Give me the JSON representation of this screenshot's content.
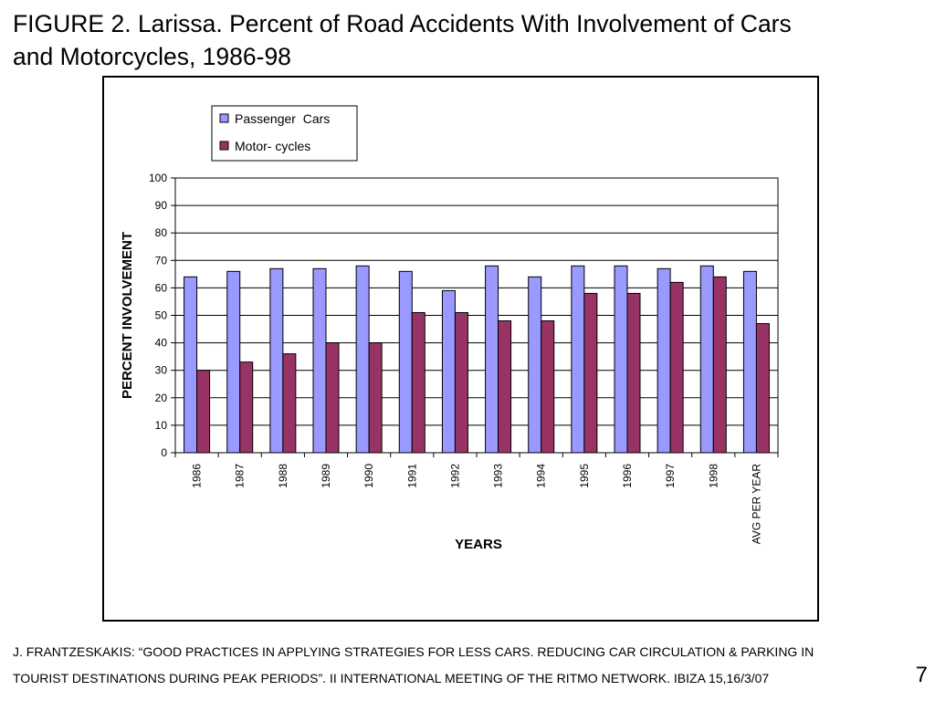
{
  "slide": {
    "title_line1": "FIGURE 2. Larissa. Percent of Road Accidents With Involvement of Cars",
    "title_line2": "and Motorcycles, 1986-98",
    "footer_line1": "J. FRANTZESKAKIS: “GOOD PRACTICES IN APPLYING STRATEGIES FOR LESS CARS. REDUCING CAR CIRCULATION & PARKING IN",
    "footer_line2": "TOURIST DESTINATIONS DURING PEAK PERIODS”. II INTERNATIONAL MEETING OF THE RITMO NETWORK. IBIZA 15,16/3/07",
    "page_number": "7"
  },
  "chart_data": {
    "type": "bar",
    "categories": [
      "1986",
      "1987",
      "1988",
      "1989",
      "1990",
      "1991",
      "1992",
      "1993",
      "1994",
      "1995",
      "1996",
      "1997",
      "1998",
      "AVG PER YEAR"
    ],
    "series": [
      {
        "name": "Passenger  Cars",
        "color": "#9999ff",
        "values": [
          64,
          66,
          67,
          67,
          68,
          66,
          59,
          68,
          64,
          68,
          68,
          67,
          68,
          66
        ]
      },
      {
        "name": "Motor- cycles",
        "color": "#993366",
        "values": [
          30,
          33,
          36,
          40,
          40,
          51,
          51,
          48,
          48,
          58,
          58,
          62,
          64,
          47
        ]
      }
    ],
    "xlabel": "YEARS",
    "ylabel": "PERCENT INVOLVEMENT",
    "ylim": [
      0,
      100
    ],
    "yticks": [
      "0",
      "10",
      "20",
      "30",
      "40",
      "50",
      "60",
      "70",
      "80",
      "90",
      "100"
    ],
    "grid": true,
    "legend_position": "top-center"
  }
}
